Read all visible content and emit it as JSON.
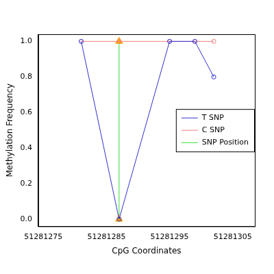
{
  "chart_data": {
    "type": "line",
    "x_label": "CpG Coordinates",
    "y_label": "Methylation Frequency",
    "xlim": [
      51281274.2,
      51281308.5
    ],
    "xticks": [
      51281275,
      51281285,
      51281295,
      51281305
    ],
    "ylim": [
      -0.04,
      1.04
    ],
    "yticks": [
      {
        "value": 0,
        "label": "0.0"
      },
      0.2,
      0.4,
      0.6,
      0.8,
      {
        "value": 1,
        "label": "1.0"
      }
    ],
    "grid": false,
    "legend": "right",
    "series": [
      {
        "name": "T SNP",
        "color": "#3030d0",
        "marker": "circle",
        "line_style": "solid",
        "x": [
          51281281,
          51281287,
          51281295,
          51281299,
          51281302
        ],
        "values": [
          1,
          0,
          1,
          1,
          0.8
        ]
      },
      {
        "name": "C SNP",
        "color": "#f08080",
        "marker": "circle",
        "line_style": "solid",
        "x": [
          51281281,
          51281287,
          51281295,
          51281299,
          51281302
        ],
        "values": [
          1,
          1,
          1,
          1,
          1
        ]
      },
      {
        "name": "SNP Position",
        "color": "#33dd33",
        "marker": "triangle",
        "line_style": "solid",
        "x": [
          51281287,
          51281287
        ],
        "values": [
          0,
          1
        ]
      }
    ]
  }
}
